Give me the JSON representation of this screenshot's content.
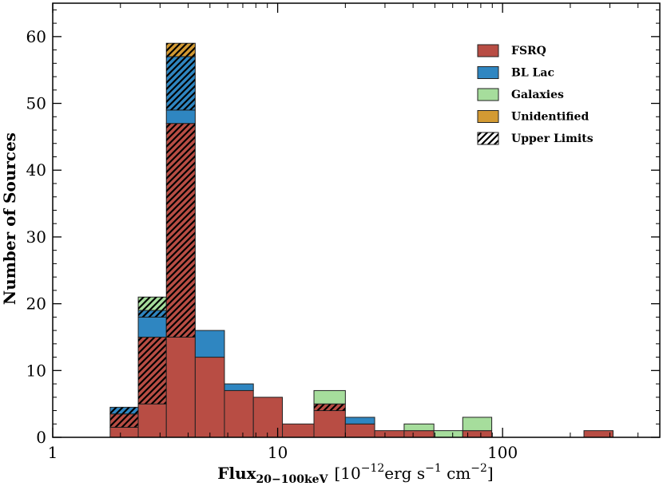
{
  "chart_data": {
    "type": "bar",
    "stacked": true,
    "xscale": "log",
    "xlim": [
      1,
      500
    ],
    "ylim": [
      0,
      65
    ],
    "x_ticks": [
      1,
      10,
      100
    ],
    "x_tick_labels": [
      "1",
      "10",
      "100"
    ],
    "y_ticks": [
      0,
      10,
      20,
      30,
      40,
      50,
      60
    ],
    "y_tick_labels": [
      "0",
      "10",
      "20",
      "30",
      "40",
      "50",
      "60"
    ],
    "xlabel": {
      "main": "Flux",
      "subscript": "20−100keV",
      "units_open": "[10",
      "units_exp": "−12",
      "units_mid": "erg s",
      "units_exp2": "−1",
      "units_mid2": " cm",
      "units_exp3": "−2",
      "units_close": "]"
    },
    "ylabel": "Number of Sources",
    "legend_position": "top-right",
    "legend": [
      {
        "label": "FSRQ",
        "color": "#b84d44",
        "pattern": "solid"
      },
      {
        "label": "BL Lac",
        "color": "#2f86c1",
        "pattern": "solid"
      },
      {
        "label": "Galaxies",
        "color": "#a6dd9c",
        "pattern": "solid"
      },
      {
        "label": "Unidentified",
        "color": "#d39a33",
        "pattern": "solid"
      },
      {
        "label": "Upper Limits",
        "color": "#ffffff",
        "pattern": "hatch"
      }
    ],
    "bins": [
      {
        "lo": 1.8,
        "hi": 2.4,
        "segments": [
          {
            "class": "FSRQ",
            "hatched": false,
            "count": 1.5
          },
          {
            "class": "FSRQ",
            "hatched": true,
            "count": 2
          },
          {
            "class": "BL Lac",
            "hatched": true,
            "count": 1
          }
        ]
      },
      {
        "lo": 2.4,
        "hi": 3.2,
        "segments": [
          {
            "class": "FSRQ",
            "hatched": false,
            "count": 5
          },
          {
            "class": "FSRQ",
            "hatched": true,
            "count": 10
          },
          {
            "class": "BL Lac",
            "hatched": false,
            "count": 3
          },
          {
            "class": "BL Lac",
            "hatched": true,
            "count": 1
          },
          {
            "class": "Galaxies",
            "hatched": true,
            "count": 2
          }
        ]
      },
      {
        "lo": 3.2,
        "hi": 4.3,
        "segments": [
          {
            "class": "FSRQ",
            "hatched": false,
            "count": 15
          },
          {
            "class": "FSRQ",
            "hatched": true,
            "count": 32
          },
          {
            "class": "BL Lac",
            "hatched": false,
            "count": 2
          },
          {
            "class": "BL Lac",
            "hatched": true,
            "count": 8
          },
          {
            "class": "Unidentified",
            "hatched": true,
            "count": 2
          }
        ]
      },
      {
        "lo": 4.3,
        "hi": 5.8,
        "segments": [
          {
            "class": "FSRQ",
            "hatched": false,
            "count": 12
          },
          {
            "class": "BL Lac",
            "hatched": false,
            "count": 4
          }
        ]
      },
      {
        "lo": 5.8,
        "hi": 7.8,
        "segments": [
          {
            "class": "FSRQ",
            "hatched": false,
            "count": 7
          },
          {
            "class": "BL Lac",
            "hatched": false,
            "count": 1
          }
        ]
      },
      {
        "lo": 7.8,
        "hi": 10.5,
        "segments": [
          {
            "class": "FSRQ",
            "hatched": false,
            "count": 6
          }
        ]
      },
      {
        "lo": 10.5,
        "hi": 14.5,
        "segments": [
          {
            "class": "FSRQ",
            "hatched": false,
            "count": 2
          }
        ]
      },
      {
        "lo": 14.5,
        "hi": 20.0,
        "segments": [
          {
            "class": "FSRQ",
            "hatched": false,
            "count": 4
          },
          {
            "class": "FSRQ",
            "hatched": true,
            "count": 1
          },
          {
            "class": "Galaxies",
            "hatched": false,
            "count": 2
          }
        ]
      },
      {
        "lo": 20.0,
        "hi": 27.0,
        "segments": [
          {
            "class": "FSRQ",
            "hatched": false,
            "count": 2
          },
          {
            "class": "BL Lac",
            "hatched": false,
            "count": 1
          }
        ]
      },
      {
        "lo": 27.0,
        "hi": 36.5,
        "segments": [
          {
            "class": "FSRQ",
            "hatched": false,
            "count": 1
          }
        ]
      },
      {
        "lo": 36.5,
        "hi": 49.5,
        "segments": [
          {
            "class": "FSRQ",
            "hatched": false,
            "count": 1
          },
          {
            "class": "Galaxies",
            "hatched": false,
            "count": 1
          }
        ]
      },
      {
        "lo": 49.5,
        "hi": 66.5,
        "segments": [
          {
            "class": "Galaxies",
            "hatched": false,
            "count": 1
          }
        ]
      },
      {
        "lo": 66.5,
        "hi": 89.5,
        "segments": [
          {
            "class": "FSRQ",
            "hatched": false,
            "count": 1
          },
          {
            "class": "Galaxies",
            "hatched": false,
            "count": 2
          }
        ]
      },
      {
        "lo": 230,
        "hi": 310,
        "segments": [
          {
            "class": "FSRQ",
            "hatched": false,
            "count": 1
          }
        ]
      }
    ]
  }
}
